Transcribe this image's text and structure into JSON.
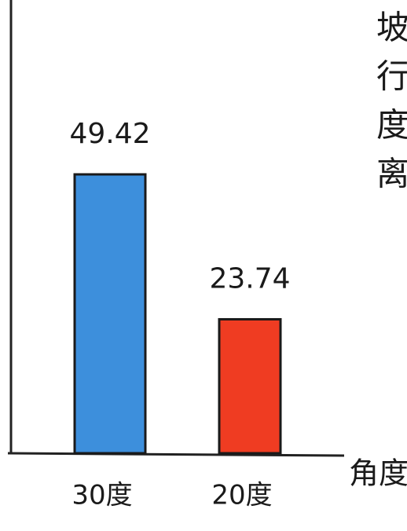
{
  "chart_data": {
    "type": "bar",
    "categories": [
      "30度",
      "20度"
    ],
    "values": [
      49.42,
      23.74
    ],
    "colors": [
      "#3d8fdc",
      "#ef3c22"
    ],
    "x_label": "角度",
    "side_text": [
      "坡",
      "行",
      "度",
      "离"
    ]
  }
}
